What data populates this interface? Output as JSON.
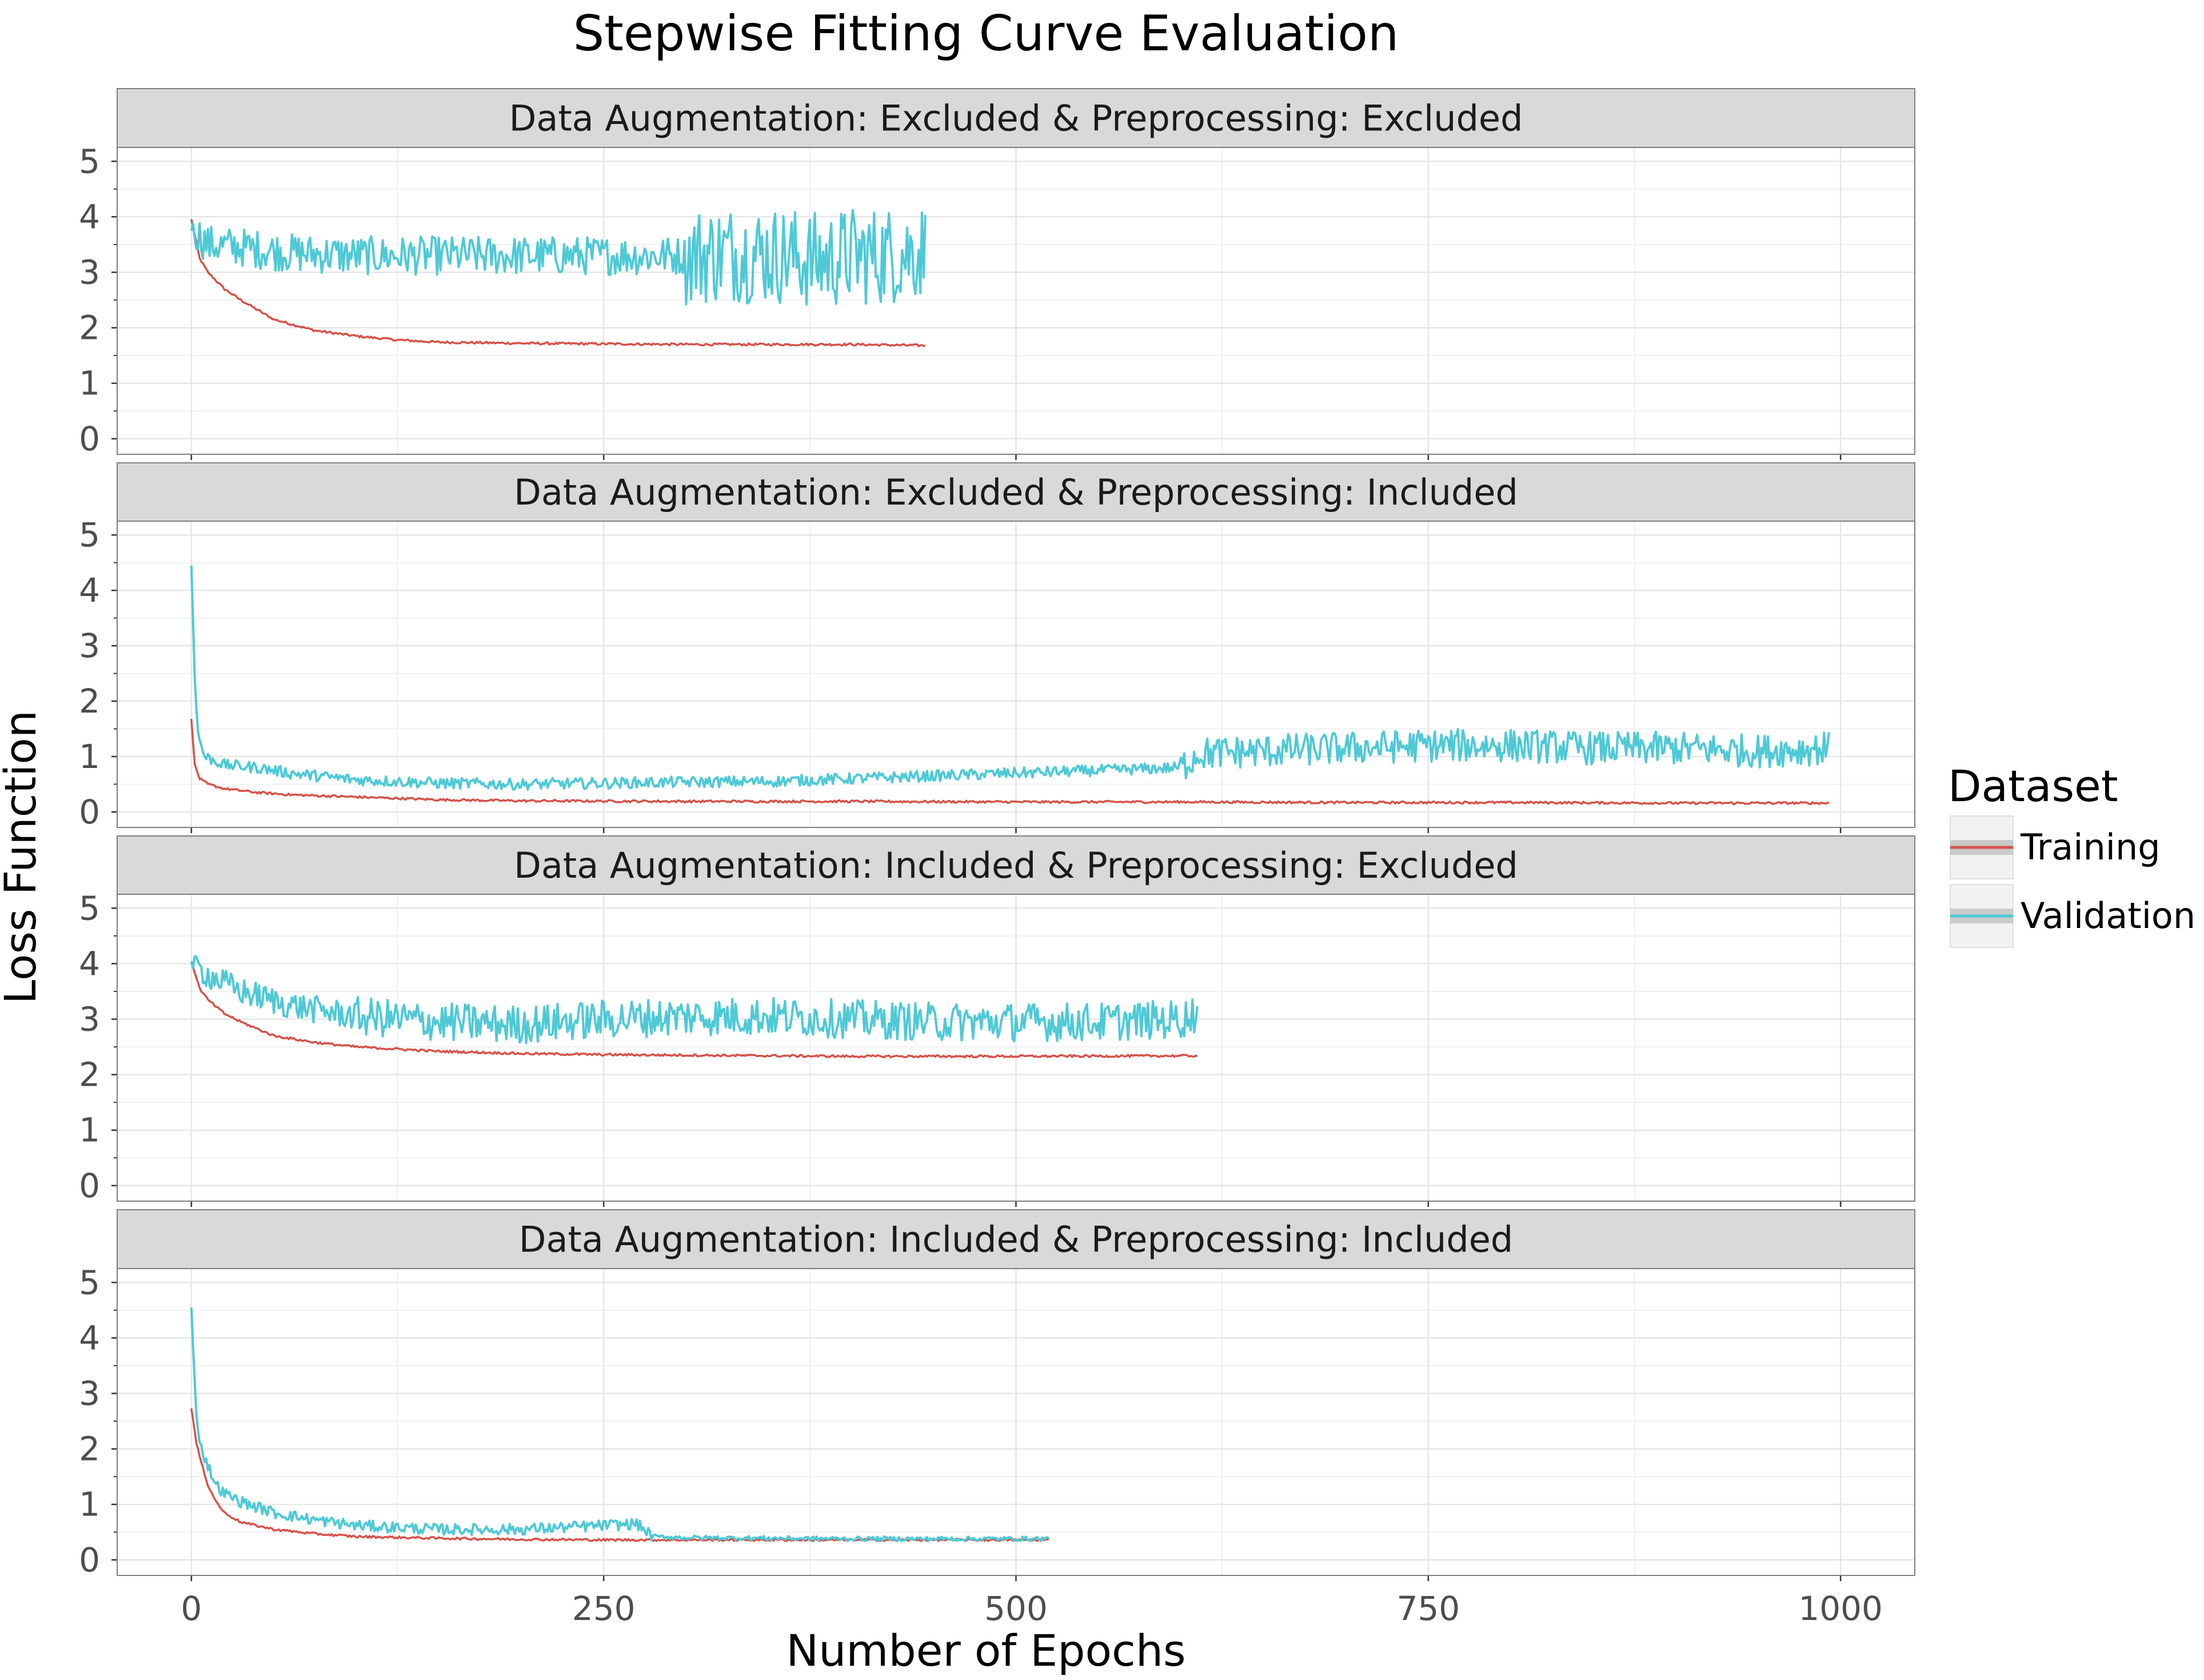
{
  "chart_data": {
    "type": "line",
    "title": "Stepwise Fitting Curve Evaluation",
    "xlabel": "Number of Epochs",
    "ylabel": "Loss Function",
    "xlim": [
      -45,
      1045
    ],
    "ylim": [
      -0.28,
      5.25
    ],
    "x_ticks": [
      0,
      250,
      500,
      750,
      1000
    ],
    "y_ticks": [
      0,
      1,
      2,
      3,
      4,
      5
    ],
    "grid": true,
    "legend": {
      "title": "Dataset",
      "position": "right",
      "entries": [
        "Training",
        "Validation"
      ]
    },
    "colors": {
      "Training": "#d6524a",
      "Validation": "#4ec9d6"
    },
    "panels": [
      {
        "label": "Data Augmentation: Excluded & Preprocessing: Excluded",
        "epochs": 445,
        "series": [
          {
            "name": "Training",
            "x": [
              0,
              5,
              10,
              20,
              30,
              50,
              75,
              100,
              125,
              150,
              200,
              250,
              300,
              350,
              400,
              445
            ],
            "y": [
              3.95,
              3.25,
              3.0,
              2.7,
              2.5,
              2.15,
              1.95,
              1.85,
              1.78,
              1.74,
              1.72,
              1.71,
              1.7,
              1.7,
              1.7,
              1.68
            ]
          },
          {
            "name": "Validation",
            "x": [
              0,
              10,
              30,
              60,
              100,
              150,
              200,
              250,
              300,
              330,
              360,
              380,
              400,
              420,
              445
            ],
            "y": [
              3.8,
              3.5,
              3.45,
              3.35,
              3.3,
              3.3,
              3.3,
              3.3,
              3.3,
              3.35,
              3.3,
              3.2,
              3.3,
              3.3,
              3.4
            ]
          }
        ]
      },
      {
        "label": "Data Augmentation: Excluded & Preprocessing: Included",
        "epochs": 993,
        "series": [
          {
            "name": "Training",
            "x": [
              0,
              2,
              5,
              10,
              20,
              40,
              60,
              100,
              150,
              200,
              300,
              400,
              500,
              600,
              700,
              800,
              900,
              993
            ],
            "y": [
              1.7,
              0.85,
              0.6,
              0.5,
              0.42,
              0.35,
              0.31,
              0.27,
              0.22,
              0.2,
              0.19,
              0.19,
              0.18,
              0.18,
              0.17,
              0.17,
              0.16,
              0.16
            ]
          },
          {
            "name": "Validation",
            "x": [
              0,
              2,
              4,
              8,
              20,
              40,
              60,
              100,
              150,
              200,
              250,
              300,
              350,
              400,
              450,
              500,
              550,
              600,
              610,
              650,
              700,
              750,
              800,
              850,
              900,
              950,
              993
            ],
            "y": [
              4.45,
              2.5,
              1.4,
              1.0,
              0.85,
              0.8,
              0.7,
              0.58,
              0.52,
              0.5,
              0.52,
              0.54,
              0.55,
              0.6,
              0.65,
              0.7,
              0.75,
              0.8,
              1.05,
              1.1,
              1.15,
              1.2,
              1.2,
              1.15,
              1.15,
              1.1,
              1.15
            ]
          }
        ]
      },
      {
        "label": "Data Augmentation: Included & Preprocessing: Excluded",
        "epochs": 610,
        "series": [
          {
            "name": "Training",
            "x": [
              0,
              5,
              10,
              20,
              30,
              50,
              75,
              100,
              150,
              200,
              250,
              300,
              400,
              500,
              610
            ],
            "y": [
              4.05,
              3.55,
              3.35,
              3.1,
              2.95,
              2.7,
              2.58,
              2.5,
              2.42,
              2.38,
              2.36,
              2.35,
              2.33,
              2.33,
              2.34
            ]
          },
          {
            "name": "Validation",
            "x": [
              0,
              10,
              30,
              60,
              100,
              150,
              200,
              250,
              300,
              350,
              400,
              450,
              500,
              550,
              600,
              610
            ],
            "y": [
              4.0,
              3.8,
              3.5,
              3.25,
              3.05,
              2.95,
              2.9,
              3.0,
              3.05,
              3.05,
              3.0,
              2.95,
              2.95,
              2.95,
              3.0,
              3.1
            ]
          }
        ]
      },
      {
        "label": "Data Augmentation: Included & Preprocessing: Included",
        "epochs": 520,
        "series": [
          {
            "name": "Training",
            "x": [
              0,
              3,
              6,
              10,
              15,
              20,
              30,
              50,
              75,
              100,
              150,
              200,
              250,
              300,
              400,
              520
            ],
            "y": [
              2.75,
              2.1,
              1.75,
              1.35,
              1.05,
              0.85,
              0.68,
              0.55,
              0.47,
              0.42,
              0.39,
              0.37,
              0.36,
              0.36,
              0.36,
              0.36
            ]
          },
          {
            "name": "Validation",
            "x": [
              0,
              3,
              6,
              10,
              15,
              20,
              30,
              50,
              75,
              100,
              150,
              200,
              270,
              280,
              300,
              400,
              520
            ],
            "y": [
              4.55,
              2.6,
              2.0,
              1.7,
              1.35,
              1.2,
              1.05,
              0.85,
              0.72,
              0.62,
              0.55,
              0.55,
              0.65,
              0.42,
              0.4,
              0.38,
              0.38
            ]
          }
        ]
      }
    ]
  }
}
